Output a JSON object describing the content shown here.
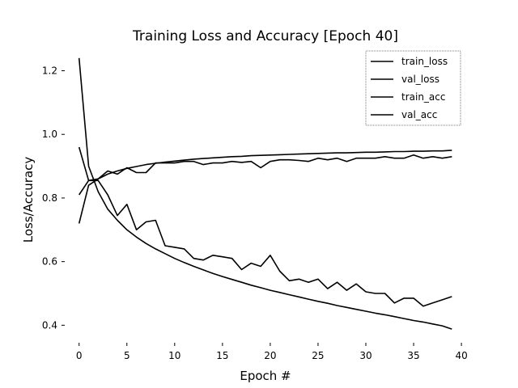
{
  "chart_data": {
    "type": "line",
    "title": "Training Loss and Accuracy [Epoch 40]",
    "xlabel": "Epoch #",
    "ylabel": "Loss/Accuracy",
    "xlim": [
      -1.5,
      40.5
    ],
    "ylim": [
      0.345,
      1.275
    ],
    "x_ticks": [
      0,
      5,
      10,
      15,
      20,
      25,
      30,
      35,
      40
    ],
    "y_ticks": [
      0.4,
      0.6,
      0.8,
      1.0,
      1.2
    ],
    "y_tick_labels": [
      "0.4",
      "0.6",
      "0.8",
      "1.0",
      "1.2"
    ],
    "grid": false,
    "legend_position": "top-right",
    "x": [
      0,
      1,
      2,
      3,
      4,
      5,
      6,
      7,
      8,
      9,
      10,
      11,
      12,
      13,
      14,
      15,
      16,
      17,
      18,
      19,
      20,
      21,
      22,
      23,
      24,
      25,
      26,
      27,
      28,
      29,
      30,
      31,
      32,
      33,
      34,
      35,
      36,
      37,
      38,
      39
    ],
    "series": [
      {
        "name": "train_loss",
        "color": "#000000",
        "values": [
          1.24,
          0.9,
          0.82,
          0.765,
          0.73,
          0.7,
          0.677,
          0.657,
          0.64,
          0.625,
          0.61,
          0.597,
          0.585,
          0.574,
          0.563,
          0.553,
          0.544,
          0.535,
          0.526,
          0.518,
          0.51,
          0.503,
          0.496,
          0.489,
          0.482,
          0.475,
          0.469,
          0.462,
          0.456,
          0.45,
          0.444,
          0.438,
          0.433,
          0.427,
          0.421,
          0.415,
          0.41,
          0.404,
          0.398,
          0.388
        ]
      },
      {
        "name": "val_loss",
        "color": "#000000",
        "values": [
          0.96,
          0.855,
          0.855,
          0.81,
          0.745,
          0.78,
          0.7,
          0.725,
          0.73,
          0.65,
          0.645,
          0.64,
          0.61,
          0.605,
          0.62,
          0.615,
          0.61,
          0.575,
          0.595,
          0.585,
          0.62,
          0.57,
          0.54,
          0.545,
          0.535,
          0.545,
          0.515,
          0.535,
          0.51,
          0.53,
          0.505,
          0.5,
          0.5,
          0.47,
          0.485,
          0.485,
          0.46,
          0.47,
          0.48,
          0.49
        ]
      },
      {
        "name": "train_acc",
        "color": "#000000",
        "values": [
          0.72,
          0.84,
          0.86,
          0.875,
          0.885,
          0.893,
          0.899,
          0.905,
          0.909,
          0.913,
          0.916,
          0.919,
          0.922,
          0.924,
          0.926,
          0.928,
          0.93,
          0.931,
          0.933,
          0.934,
          0.935,
          0.936,
          0.937,
          0.938,
          0.939,
          0.94,
          0.941,
          0.942,
          0.942,
          0.943,
          0.944,
          0.944,
          0.945,
          0.946,
          0.946,
          0.947,
          0.947,
          0.948,
          0.948,
          0.95
        ]
      },
      {
        "name": "val_acc",
        "color": "#000000",
        "values": [
          0.81,
          0.855,
          0.86,
          0.885,
          0.875,
          0.895,
          0.88,
          0.88,
          0.91,
          0.91,
          0.91,
          0.915,
          0.915,
          0.905,
          0.91,
          0.91,
          0.915,
          0.912,
          0.915,
          0.895,
          0.915,
          0.92,
          0.92,
          0.918,
          0.915,
          0.925,
          0.92,
          0.925,
          0.915,
          0.925,
          0.925,
          0.925,
          0.93,
          0.925,
          0.925,
          0.935,
          0.925,
          0.93,
          0.925,
          0.93
        ]
      }
    ]
  }
}
